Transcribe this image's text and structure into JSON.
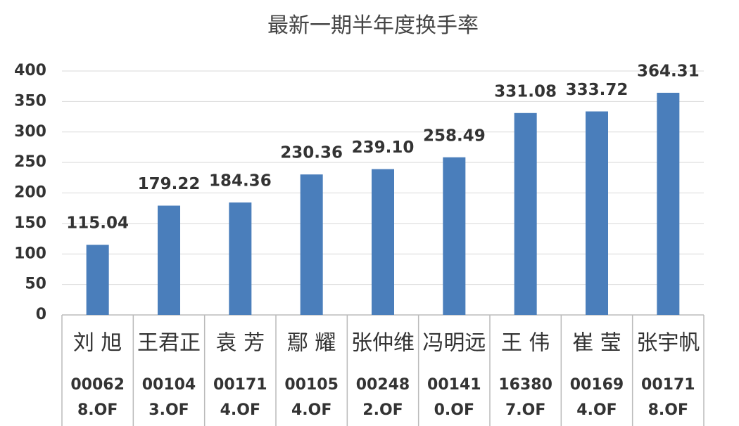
{
  "chart_data": {
    "type": "bar",
    "title": "最新一期半年度换手率",
    "categories": [
      "刘 旭",
      "王君正",
      "袁 芳",
      "鄢 耀",
      "张仲维",
      "冯明远",
      "王 伟",
      "崔 莹",
      "张宇帆"
    ],
    "codes": [
      "000628.OF",
      "001043.OF",
      "001714.OF",
      "001054.OF",
      "002482.OF",
      "001410.OF",
      "163807.OF",
      "001694.OF",
      "001718.OF"
    ],
    "values": [
      115.04,
      179.22,
      184.36,
      230.36,
      239.1,
      258.49,
      331.08,
      333.72,
      364.31
    ],
    "value_labels": [
      "115.04",
      "179.22",
      "184.36",
      "230.36",
      "239.10",
      "258.49",
      "331.08",
      "333.72",
      "364.31"
    ],
    "color": "#4a7ebb",
    "ylim": [
      0,
      400
    ],
    "yticks": [
      0,
      50,
      100,
      150,
      200,
      250,
      300,
      350,
      400
    ],
    "grid": true
  }
}
